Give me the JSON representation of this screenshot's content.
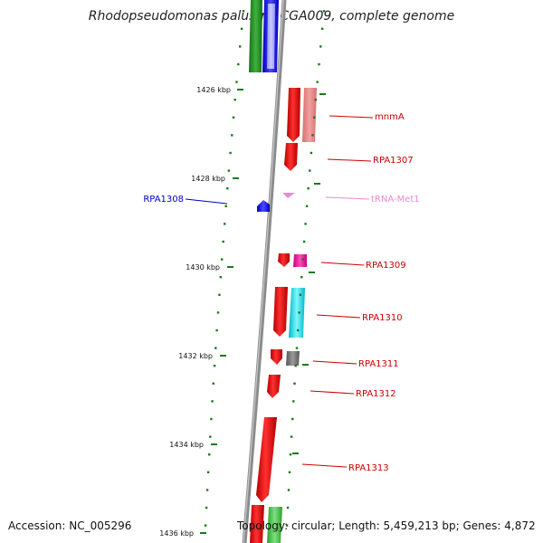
{
  "title": "Rhodopseudomonas palustris CGA009, complete genome",
  "accession": "Accession: NC_005296",
  "topology": "Topology: circular; Length: 5,459,213 bp; Genes: 4,872",
  "colors": {
    "backbone": "#8c8c8c",
    "tick": "#1a7a1a",
    "cds": "#ff0000",
    "trna": "#e98ad0",
    "blue": "#0000ff",
    "green": "#228b22"
  },
  "ticks": [
    {
      "label": "1426 kbp"
    },
    {
      "label": "1428 kbp"
    },
    {
      "label": "1430 kbp"
    },
    {
      "label": "1432 kbp"
    },
    {
      "label": "1434 kbp"
    },
    {
      "label": "1436 kbp"
    }
  ],
  "labels": [
    {
      "text": "mnmA",
      "color": "#cc0000",
      "side": "right"
    },
    {
      "text": "RPA1307",
      "color": "#cc0000",
      "side": "right"
    },
    {
      "text": "RPA1308",
      "color": "#0000cc",
      "side": "left"
    },
    {
      "text": "tRNA-Met1",
      "color": "#e98ad0",
      "side": "right"
    },
    {
      "text": "RPA1309",
      "color": "#cc0000",
      "side": "right"
    },
    {
      "text": "RPA1310",
      "color": "#cc0000",
      "side": "right"
    },
    {
      "text": "RPA1311",
      "color": "#cc0000",
      "side": "right"
    },
    {
      "text": "RPA1312",
      "color": "#cc0000",
      "side": "right"
    },
    {
      "text": "RPA1313",
      "color": "#cc0000",
      "side": "right"
    }
  ]
}
